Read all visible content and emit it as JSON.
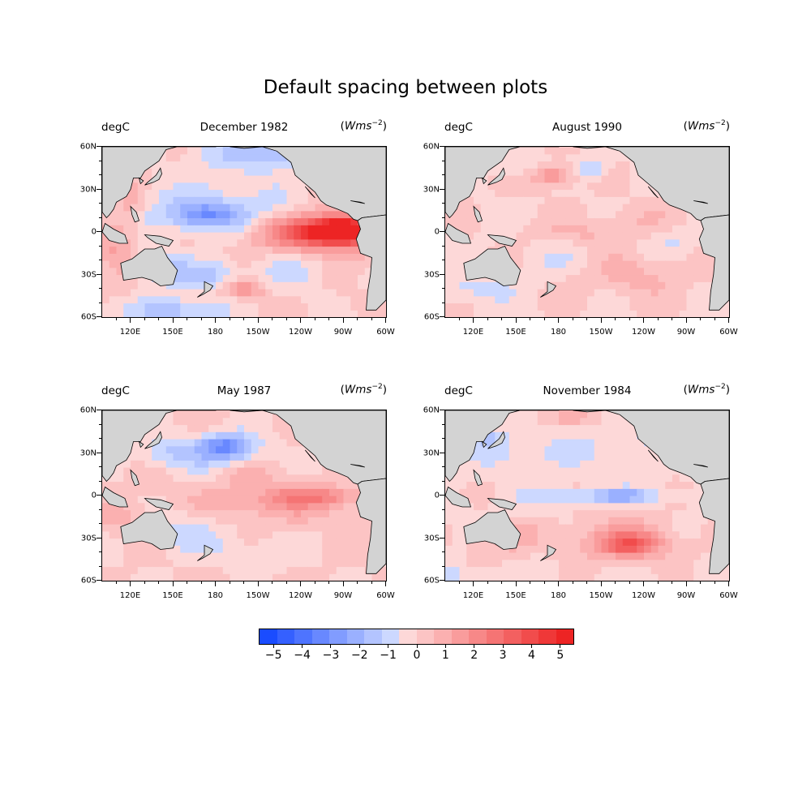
{
  "figure": {
    "title": "Default spacing between plots"
  },
  "panels": [
    {
      "left_label": "degC",
      "center_label": "December 1982",
      "right_label_base": "Wms",
      "right_label_exp": "−2",
      "pattern": "elnino"
    },
    {
      "left_label": "degC",
      "center_label": "August 1990",
      "right_label_base": "Wms",
      "right_label_exp": "−2",
      "pattern": "weak"
    },
    {
      "left_label": "degC",
      "center_label": "May 1987",
      "right_label_base": "Wms",
      "right_label_exp": "−2",
      "pattern": "moderate"
    },
    {
      "left_label": "degC",
      "center_label": "November 1984",
      "right_label_base": "Wms",
      "right_label_exp": "−2",
      "pattern": "lanina"
    }
  ],
  "axes": {
    "lat_ticks": [
      "60N",
      "30N",
      "0",
      "30S",
      "60S"
    ],
    "lon_ticks": [
      "120E",
      "150E",
      "180",
      "150W",
      "120W",
      "90W",
      "60W"
    ],
    "lon_range": [
      100,
      300
    ],
    "lat_range": [
      -60,
      60
    ]
  },
  "colorbar": {
    "levels": [
      -5.5,
      5.5
    ],
    "tick_labels": [
      "−5",
      "−4",
      "−3",
      "−2",
      "−1",
      "0",
      "1",
      "2",
      "3",
      "4",
      "5"
    ],
    "tick_values": [
      -5,
      -4,
      -3,
      -2,
      -1,
      0,
      1,
      2,
      3,
      4,
      5
    ],
    "colors": [
      "#1a4cff",
      "#3560ff",
      "#4e74ff",
      "#6888ff",
      "#819cff",
      "#9ab0ff",
      "#b3c4ff",
      "#ccd8ff",
      "#fdd8d8",
      "#fcc4c4",
      "#fbb0b0",
      "#f99c9c",
      "#f78888",
      "#f57474",
      "#f36060",
      "#f14c4c",
      "#ef3838",
      "#ed2424"
    ],
    "land_color": "#d3d3d3"
  }
}
